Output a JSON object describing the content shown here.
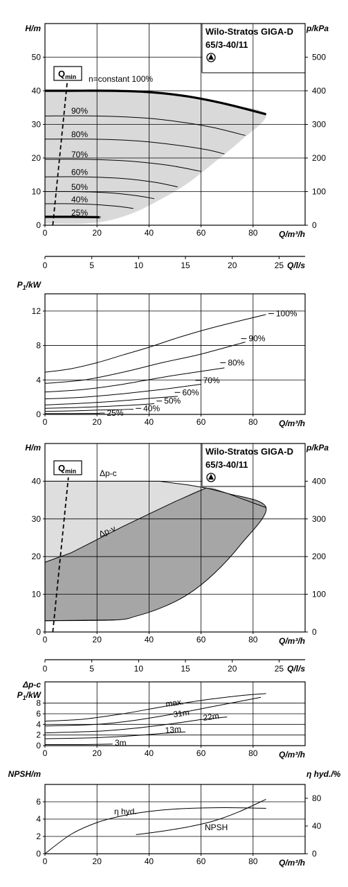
{
  "chart_data": [
    {
      "id": "hq",
      "type": "line",
      "title": "Wilo-Stratos GIGA-D",
      "subtitle": "65/3-40/11",
      "xlabel": "Q/m³/h",
      "ylabel": "H/m",
      "y2label": "p/kPa",
      "xlim": [
        0,
        100
      ],
      "ylim": [
        0,
        60
      ],
      "xticks": [
        "0",
        "20",
        "40",
        "60",
        "80"
      ],
      "yticks": [
        "0",
        "10",
        "20",
        "30",
        "40",
        "50"
      ],
      "y2ticks": [
        "0",
        "100",
        "200",
        "300",
        "400",
        "500"
      ],
      "qmin_label": "Q",
      "qmin_sub": "min",
      "qmin_line": [
        [
          3,
          0
        ],
        [
          9,
          46
        ]
      ],
      "series": [
        {
          "name": "n=constant 100%",
          "values": [
            [
              0,
              40
            ],
            [
              10,
              40
            ],
            [
              25,
              40
            ],
            [
              40,
              39.6
            ],
            [
              55,
              38.3
            ],
            [
              70,
              36
            ],
            [
              85,
              33
            ]
          ]
        },
        {
          "name": "90%",
          "values": [
            [
              0,
              32.5
            ],
            [
              20,
              32.5
            ],
            [
              40,
              31.8
            ],
            [
              55,
              30.4
            ],
            [
              65,
              29
            ],
            [
              77,
              26.7
            ]
          ]
        },
        {
          "name": "80%",
          "values": [
            [
              0,
              25.6
            ],
            [
              18,
              25.6
            ],
            [
              35,
              25.1
            ],
            [
              50,
              23.9
            ],
            [
              62,
              22.5
            ],
            [
              69,
              21.2
            ]
          ]
        },
        {
          "name": "70%",
          "values": [
            [
              0,
              19.6
            ],
            [
              15,
              19.6
            ],
            [
              30,
              19.2
            ],
            [
              45,
              18.1
            ],
            [
              53,
              17.1
            ],
            [
              60,
              16
            ]
          ]
        },
        {
          "name": "60%",
          "values": [
            [
              0,
              14.4
            ],
            [
              15,
              14.4
            ],
            [
              30,
              13.9
            ],
            [
              42,
              12.8
            ],
            [
              51,
              11.4
            ]
          ]
        },
        {
          "name": "50%",
          "values": [
            [
              0,
              10
            ],
            [
              12,
              10
            ],
            [
              25,
              9.6
            ],
            [
              35,
              8.8
            ],
            [
              42,
              7.9
            ]
          ]
        },
        {
          "name": "40%",
          "values": [
            [
              0,
              6.4
            ],
            [
              10,
              6.4
            ],
            [
              20,
              6.1
            ],
            [
              28,
              5.6
            ],
            [
              34,
              5
            ]
          ]
        },
        {
          "name": "25%",
          "values": [
            [
              0,
              2.5
            ],
            [
              10,
              2.5
            ],
            [
              20,
              2.4
            ],
            [
              21,
              2.3
            ]
          ]
        }
      ],
      "region": [
        [
          0,
          40
        ],
        [
          25,
          40
        ],
        [
          40,
          39.6
        ],
        [
          55,
          38.3
        ],
        [
          70,
          36
        ],
        [
          85,
          33
        ],
        [
          75,
          25
        ],
        [
          64,
          18
        ],
        [
          54,
          12
        ],
        [
          44,
          7.5
        ],
        [
          35,
          4
        ],
        [
          25,
          1.5
        ],
        [
          15,
          0.5
        ],
        [
          0,
          0.5
        ]
      ]
    },
    {
      "id": "qls",
      "type": "axis",
      "xlabel": "Q/l/s",
      "xlim": [
        0,
        27.78
      ],
      "xticks": [
        "0",
        "5",
        "10",
        "15",
        "20",
        "25"
      ]
    },
    {
      "id": "power",
      "type": "line",
      "xlabel": "Q/m³/h",
      "ylabel": "P",
      "ylabel_sub": "1",
      "ylabel_unit": "/kW",
      "xlim": [
        0,
        100
      ],
      "ylim": [
        0,
        14
      ],
      "xticks": [
        "0",
        "20",
        "40",
        "60",
        "80"
      ],
      "yticks": [
        "0",
        "4",
        "8",
        "12"
      ],
      "series": [
        {
          "name": "100%",
          "values": [
            [
              0,
              4.9
            ],
            [
              10,
              5.3
            ],
            [
              20,
              6
            ],
            [
              30,
              6.9
            ],
            [
              40,
              7.8
            ],
            [
              50,
              8.8
            ],
            [
              60,
              9.7
            ],
            [
              70,
              10.5
            ],
            [
              85,
              11.6
            ]
          ]
        },
        {
          "name": "90%",
          "values": [
            [
              0,
              3.6
            ],
            [
              15,
              4
            ],
            [
              30,
              4.9
            ],
            [
              45,
              6
            ],
            [
              60,
              7
            ],
            [
              77,
              8.4
            ]
          ]
        },
        {
          "name": "80%",
          "values": [
            [
              0,
              2.6
            ],
            [
              15,
              2.9
            ],
            [
              30,
              3.5
            ],
            [
              45,
              4.3
            ],
            [
              60,
              5
            ],
            [
              69,
              5.4
            ]
          ]
        },
        {
          "name": "70%",
          "values": [
            [
              0,
              1.8
            ],
            [
              15,
              2
            ],
            [
              30,
              2.4
            ],
            [
              45,
              2.9
            ],
            [
              60,
              3.5
            ]
          ]
        },
        {
          "name": "60%",
          "values": [
            [
              0,
              1.1
            ],
            [
              15,
              1.3
            ],
            [
              30,
              1.6
            ],
            [
              42,
              1.9
            ],
            [
              51,
              2.1
            ]
          ]
        },
        {
          "name": "50%",
          "values": [
            [
              0,
              0.7
            ],
            [
              12,
              0.8
            ],
            [
              25,
              0.95
            ],
            [
              35,
              1.1
            ],
            [
              42,
              1.25
            ]
          ]
        },
        {
          "name": "40%",
          "values": [
            [
              0,
              0.35
            ],
            [
              10,
              0.4
            ],
            [
              20,
              0.5
            ],
            [
              28,
              0.55
            ],
            [
              34,
              0.6
            ]
          ]
        },
        {
          "name": "25%",
          "values": [
            [
              0,
              0.1
            ],
            [
              10,
              0.1
            ],
            [
              21,
              0.12
            ]
          ]
        }
      ]
    },
    {
      "id": "hq2",
      "type": "line",
      "title": "Wilo-Stratos GIGA-D",
      "subtitle": "65/3-40/11",
      "xlabel": "Q/m³/h",
      "ylabel": "H/m",
      "y2label": "p/kPa",
      "xlim": [
        0,
        100
      ],
      "ylim": [
        0,
        50
      ],
      "xticks": [
        "0",
        "20",
        "40",
        "60",
        "80"
      ],
      "yticks": [
        "0",
        "10",
        "20",
        "30",
        "40"
      ],
      "y2ticks": [
        "0",
        "100",
        "200",
        "300",
        "400"
      ],
      "qmin_label": "Q",
      "qmin_sub": "min",
      "qmin_line": [
        [
          3,
          0
        ],
        [
          9,
          41
        ]
      ],
      "series": [
        {
          "name": "Δp-c",
          "values": [
            [
              0,
              40
            ],
            [
              20,
              40
            ],
            [
              44,
              40
            ],
            [
              55,
              39
            ],
            [
              62,
              38.2
            ],
            [
              70,
              36.8
            ],
            [
              85,
              33
            ]
          ]
        },
        {
          "name": "Δp-v",
          "values": [
            [
              0,
              18.5
            ],
            [
              10,
              21
            ],
            [
              20,
              24.5
            ],
            [
              30,
              28
            ],
            [
              40,
              31.3
            ],
            [
              50,
              34.6
            ],
            [
              62,
              38.2
            ]
          ]
        },
        {
          "name": "",
          "values": [
            [
              0,
              3
            ],
            [
              27,
              3.2
            ]
          ]
        }
      ],
      "light_region": [
        [
          0,
          18.5
        ],
        [
          10,
          21
        ],
        [
          20,
          24.5
        ],
        [
          30,
          28
        ],
        [
          40,
          31.3
        ],
        [
          50,
          34.6
        ],
        [
          62,
          38.2
        ],
        [
          55,
          39
        ],
        [
          44,
          40
        ],
        [
          0,
          40
        ]
      ],
      "dark_region": [
        [
          0,
          18.5
        ],
        [
          10,
          21
        ],
        [
          20,
          24.5
        ],
        [
          30,
          28
        ],
        [
          40,
          31.3
        ],
        [
          50,
          34.6
        ],
        [
          62,
          38.2
        ],
        [
          70,
          36.8
        ],
        [
          85,
          33
        ],
        [
          75,
          23
        ],
        [
          65,
          15.5
        ],
        [
          55,
          10
        ],
        [
          45,
          6.5
        ],
        [
          35,
          4.2
        ],
        [
          27,
          3.2
        ],
        [
          0,
          3
        ]
      ]
    },
    {
      "id": "qls2",
      "type": "axis",
      "xlabel": "Q/l/s",
      "xlim": [
        0,
        27.78
      ],
      "xticks": [
        "0",
        "5",
        "10",
        "15",
        "20",
        "25"
      ]
    },
    {
      "id": "power2",
      "type": "line",
      "xlabel": "Q/m³/h",
      "ylabel_top": "Δp-c",
      "ylabel": "P",
      "ylabel_sub": "1",
      "ylabel_unit": "/kW",
      "xlim": [
        0,
        100
      ],
      "ylim": [
        0,
        12
      ],
      "xticks": [
        "0",
        "20",
        "40",
        "60",
        "80"
      ],
      "yticks": [
        "0",
        "2",
        "4",
        "6",
        "8"
      ],
      "series": [
        {
          "name": "max.",
          "values": [
            [
              0,
              4.6
            ],
            [
              15,
              5
            ],
            [
              30,
              6
            ],
            [
              45,
              7.3
            ],
            [
              60,
              8.5
            ],
            [
              75,
              9.4
            ],
            [
              85,
              9.8
            ]
          ]
        },
        {
          "name": "31m",
          "values": [
            [
              0,
              3.7
            ],
            [
              20,
              4
            ],
            [
              35,
              4.8
            ],
            [
              50,
              6
            ],
            [
              65,
              7.4
            ],
            [
              83,
              9.1
            ]
          ]
        },
        {
          "name": "22m",
          "values": [
            [
              0,
              2.4
            ],
            [
              20,
              2.7
            ],
            [
              35,
              3.3
            ],
            [
              50,
              4.2
            ],
            [
              60,
              4.9
            ],
            [
              70,
              5.4
            ]
          ]
        },
        {
          "name": "13m",
          "values": [
            [
              0,
              1.3
            ],
            [
              20,
              1.5
            ],
            [
              35,
              1.9
            ],
            [
              45,
              2.3
            ],
            [
              54,
              2.6
            ]
          ]
        },
        {
          "name": "3m",
          "values": [
            [
              0,
              0.2
            ],
            [
              15,
              0.2
            ],
            [
              26,
              0.3
            ]
          ]
        }
      ]
    },
    {
      "id": "npsh",
      "type": "line",
      "xlabel": "Q/m³/h",
      "ylabel": "NPSH/m",
      "y2label": "η hyd./%",
      "xlim": [
        0,
        100
      ],
      "ylim": [
        0,
        8
      ],
      "y2lim": [
        0,
        100
      ],
      "xticks": [
        "0",
        "20",
        "40",
        "60",
        "80"
      ],
      "yticks": [
        "0",
        "2",
        "4",
        "6"
      ],
      "y2ticks": [
        "0",
        "40",
        "80"
      ],
      "series": [
        {
          "name": "η hyd.",
          "axis": "right",
          "values": [
            [
              0,
              0
            ],
            [
              10,
              28
            ],
            [
              20,
              45
            ],
            [
              30,
              55
            ],
            [
              40,
              61
            ],
            [
              50,
              64.5
            ],
            [
              60,
              66
            ],
            [
              70,
              66.5
            ],
            [
              85,
              65.5
            ]
          ]
        },
        {
          "name": "NPSH",
          "axis": "left",
          "values": [
            [
              35,
              2.2
            ],
            [
              45,
              2.6
            ],
            [
              55,
              3.1
            ],
            [
              65,
              3.8
            ],
            [
              75,
              4.9
            ],
            [
              85,
              6.3
            ]
          ]
        }
      ]
    }
  ]
}
